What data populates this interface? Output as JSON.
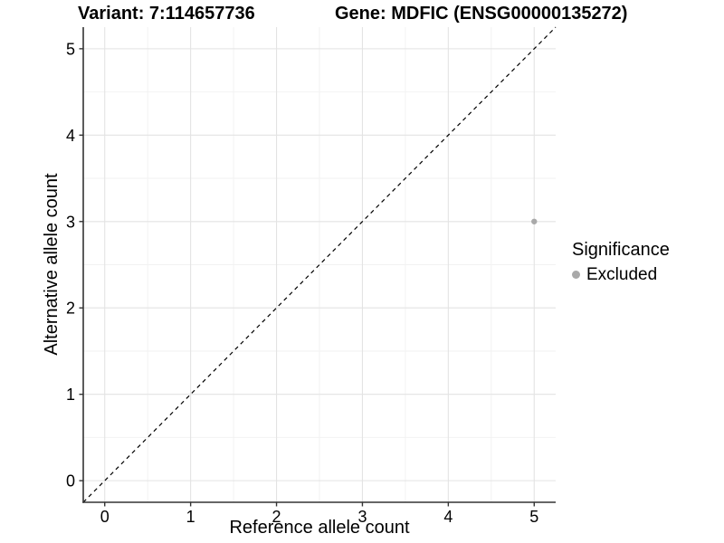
{
  "header": {
    "title_left": "Variant: 7:114657736",
    "title_right": "Gene: MDFIC (ENSG00000135272)"
  },
  "chart_data": {
    "type": "scatter",
    "xlabel": "Reference allele count",
    "ylabel": "Alternative allele count",
    "xlim": [
      -0.25,
      5.25
    ],
    "ylim": [
      -0.25,
      5.25
    ],
    "xticks": [
      0,
      1,
      2,
      3,
      4,
      5
    ],
    "yticks": [
      0,
      1,
      2,
      3,
      4,
      5
    ],
    "minor_grid_positions": [
      0.5,
      1.5,
      2.5,
      3.5,
      4.5
    ],
    "grid": "major+minor",
    "points": [
      {
        "x": 5,
        "y": 3,
        "significance": "Excluded"
      }
    ],
    "identity_line": {
      "slope": 1,
      "intercept": 0,
      "style": "dashed",
      "color": "#000000"
    },
    "legend": {
      "title": "Significance",
      "position": "right",
      "items": [
        {
          "label": "Excluded",
          "color": "#a9a9a9"
        }
      ]
    },
    "colors": {
      "point": "#a9a9a9",
      "grid_major": "#e3e3e3",
      "grid_minor": "#f2f2f2",
      "axis_line": "#333333",
      "tick_label": "#000000"
    }
  }
}
